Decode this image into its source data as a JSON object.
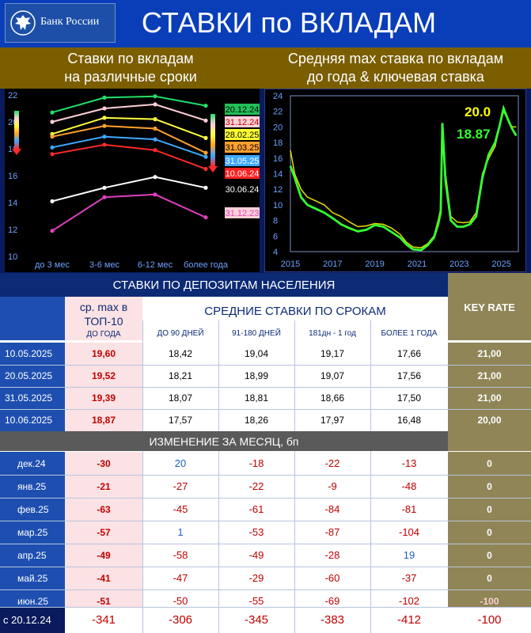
{
  "header": {
    "logo_text": "Банк России",
    "title": "СТАВКИ по ВКЛАДАМ"
  },
  "subtitles": {
    "left": [
      "Ставки по вкладам",
      "на различные сроки"
    ],
    "right": [
      "Средняя max ставка по вкладам",
      "до года & ключевая ставка"
    ]
  },
  "colors": {
    "header_blue": "#0a3eb8",
    "band_gold": "#7a5e00",
    "key_rate_bg": "#8f8557",
    "pink_col": "#fbe2e4",
    "negative": "#c00000",
    "positive": "#1f5fbf"
  },
  "chart_data": [
    {
      "type": "line",
      "categories": [
        "до 3 мес",
        "3-6 мес",
        "6-12 мес",
        "более года"
      ],
      "ylim": [
        10,
        22
      ],
      "yticks": [
        10,
        12,
        14,
        16,
        18,
        20,
        22
      ],
      "series": [
        {
          "name": "20.12.24",
          "color": "#22e06a",
          "values": [
            20.7,
            21.8,
            21.9,
            21.2
          ]
        },
        {
          "name": "31.12.24",
          "color": "#ffd0d8",
          "values": [
            20.0,
            21.0,
            21.3,
            20.1
          ]
        },
        {
          "name": "28.02.25",
          "color": "#ffff40",
          "values": [
            19.1,
            20.3,
            20.2,
            18.8
          ]
        },
        {
          "name": "31.03.25",
          "color": "#ffa030",
          "values": [
            18.9,
            19.7,
            19.5,
            17.7
          ]
        },
        {
          "name": "31.05.25",
          "color": "#3fa9ff",
          "values": [
            18.1,
            18.9,
            18.7,
            17.4
          ]
        },
        {
          "name": "10.06.24",
          "color": "#ff2a2a",
          "values": [
            17.6,
            18.3,
            17.9,
            16.5
          ]
        },
        {
          "name": "30.06.24",
          "color": "#ffffff",
          "values": [
            14.1,
            15.1,
            15.9,
            15.1
          ]
        },
        {
          "name": "31.12.23",
          "color": "#e040c0",
          "values": [
            11.9,
            14.4,
            14.6,
            12.9
          ]
        }
      ],
      "legend_label_colors": {
        "20.12.24": {
          "bg": "#22c05a",
          "fg": "#000000"
        },
        "31.12.24": {
          "bg": "#ffd0d8",
          "fg": "#c00000"
        },
        "28.02.25": {
          "bg": "#ffff30",
          "fg": "#000000"
        },
        "31.03.25": {
          "bg": "#ffa030",
          "fg": "#000000"
        },
        "31.05.25": {
          "bg": "#3fa9ff",
          "fg": "#ffffff"
        },
        "10.06.24": {
          "bg": "#ff2020",
          "fg": "#ffffff"
        },
        "30.06.24": {
          "bg": "#000000",
          "fg": "#ffffff"
        },
        "31.12.23": {
          "bg": "#ffd0d8",
          "fg": "#e040c0"
        }
      }
    },
    {
      "type": "line",
      "xlim": [
        2015,
        2025.8
      ],
      "ylim": [
        4,
        24
      ],
      "xticks": [
        2015,
        2017,
        2019,
        2021,
        2023,
        2025
      ],
      "yticks": [
        4,
        6,
        8,
        10,
        12,
        14,
        16,
        18,
        20,
        22,
        24
      ],
      "annotations": [
        {
          "text": "20.0",
          "color": "#ffff00"
        },
        {
          "text": "18.87",
          "color": "#33ff33"
        }
      ],
      "series": [
        {
          "color": "#e8e000",
          "x": [
            2015.0,
            2015.2,
            2015.5,
            2015.8,
            2016.2,
            2016.6,
            2017.0,
            2017.4,
            2017.8,
            2018.2,
            2018.6,
            2019.0,
            2019.4,
            2019.8,
            2020.2,
            2020.5,
            2020.8,
            2021.2,
            2021.5,
            2021.8,
            2022.0,
            2022.12,
            2022.2,
            2022.35,
            2022.6,
            2022.9,
            2023.2,
            2023.5,
            2023.8,
            2024.1,
            2024.4,
            2024.7,
            2024.9,
            2025.1,
            2025.3,
            2025.5,
            2025.7
          ],
          "y": [
            17.0,
            14.0,
            12.0,
            11.0,
            10.5,
            10.0,
            9.0,
            8.5,
            7.8,
            7.2,
            7.3,
            7.6,
            7.5,
            7.0,
            6.2,
            5.2,
            4.6,
            4.5,
            5.0,
            6.0,
            8.0,
            9.5,
            20.4,
            14.0,
            8.5,
            7.8,
            7.7,
            7.8,
            9.0,
            14.0,
            16.0,
            17.5,
            20.0,
            22.0,
            21.0,
            20.0,
            20.0
          ]
        },
        {
          "color": "#33ff33",
          "x": [
            2015.0,
            2015.2,
            2015.5,
            2015.8,
            2016.2,
            2016.6,
            2017.0,
            2017.4,
            2017.8,
            2018.2,
            2018.6,
            2019.0,
            2019.4,
            2019.8,
            2020.2,
            2020.5,
            2020.8,
            2021.2,
            2021.5,
            2021.8,
            2022.0,
            2022.12,
            2022.2,
            2022.35,
            2022.6,
            2022.9,
            2023.2,
            2023.5,
            2023.8,
            2024.1,
            2024.4,
            2024.7,
            2024.9,
            2025.1,
            2025.3,
            2025.5,
            2025.7
          ],
          "y": [
            15.0,
            13.5,
            11.0,
            10.0,
            9.5,
            9.0,
            8.3,
            7.5,
            7.0,
            6.6,
            6.8,
            7.4,
            7.2,
            6.5,
            5.8,
            4.9,
            4.3,
            4.2,
            4.8,
            5.8,
            7.5,
            9.0,
            20.5,
            13.0,
            8.0,
            7.2,
            7.2,
            7.5,
            8.5,
            13.5,
            16.5,
            18.0,
            20.0,
            22.4,
            21.0,
            19.8,
            18.87
          ]
        }
      ]
    }
  ],
  "table": {
    "section_title": "СТАВКИ ПО ДЕПОЗИТАМ НАСЕЛЕНИЯ",
    "key_rate_label": "KEY RATE",
    "top10_label_line1": "ср. max в",
    "top10_label_line2": "ТОП-10",
    "top10_sub": "ДО ГОДА",
    "avg_label": "СРЕДНИЕ СТАВКИ ПО СРОКАМ",
    "col_headers": [
      "ДО 90 ДНЕЙ",
      "91-180 ДНЕЙ",
      "181дн - 1 год",
      "БОЛЕЕ 1 ГОДА"
    ],
    "rows": [
      {
        "date": "10.05.2025",
        "top10": "19,60",
        "c1": "18,42",
        "c2": "19,04",
        "c3": "19,17",
        "c4": "17,66",
        "key": "21,00"
      },
      {
        "date": "20.05.2025",
        "top10": "19,52",
        "c1": "18,21",
        "c2": "18,99",
        "c3": "19,07",
        "c4": "17,56",
        "key": "21,00"
      },
      {
        "date": "31.05.2025",
        "top10": "19,39",
        "c1": "18,07",
        "c2": "18,81",
        "c3": "18,66",
        "c4": "17,50",
        "key": "21,00"
      },
      {
        "date": "10.06.2025",
        "top10": "18,87",
        "c1": "17,57",
        "c2": "18,26",
        "c3": "17,97",
        "c4": "16,48",
        "key": "20,00"
      }
    ],
    "change_title": "ИЗМЕНЕНИЕ ЗА МЕСЯЦ, бп",
    "change_rows": [
      {
        "month": "дек.24",
        "top10": "-30",
        "c1": "20",
        "c2": "-18",
        "c3": "-22",
        "c4": "-13",
        "key": "0"
      },
      {
        "month": "янв.25",
        "top10": "-21",
        "c1": "-27",
        "c2": "-22",
        "c3": "-9",
        "c4": "-48",
        "key": "0"
      },
      {
        "month": "фев.25",
        "top10": "-63",
        "c1": "-45",
        "c2": "-61",
        "c3": "-84",
        "c4": "-81",
        "key": "0"
      },
      {
        "month": "мар.25",
        "top10": "-57",
        "c1": "1",
        "c2": "-53",
        "c3": "-87",
        "c4": "-104",
        "key": "0"
      },
      {
        "month": "апр.25",
        "top10": "-49",
        "c1": "-58",
        "c2": "-49",
        "c3": "-28",
        "c4": "19",
        "key": "0"
      },
      {
        "month": "май.25",
        "top10": "-41",
        "c1": "-47",
        "c2": "-29",
        "c3": "-60",
        "c4": "-37",
        "key": "0"
      },
      {
        "month": "июн.25",
        "top10": "-51",
        "c1": "-50",
        "c2": "-55",
        "c3": "-69",
        "c4": "-102",
        "key": "-100"
      }
    ],
    "total_row": {
      "label": "с 20.12.24",
      "top10": "-341",
      "c1": "-306",
      "c2": "-345",
      "c3": "-383",
      "c4": "-412",
      "key": "-100"
    }
  }
}
